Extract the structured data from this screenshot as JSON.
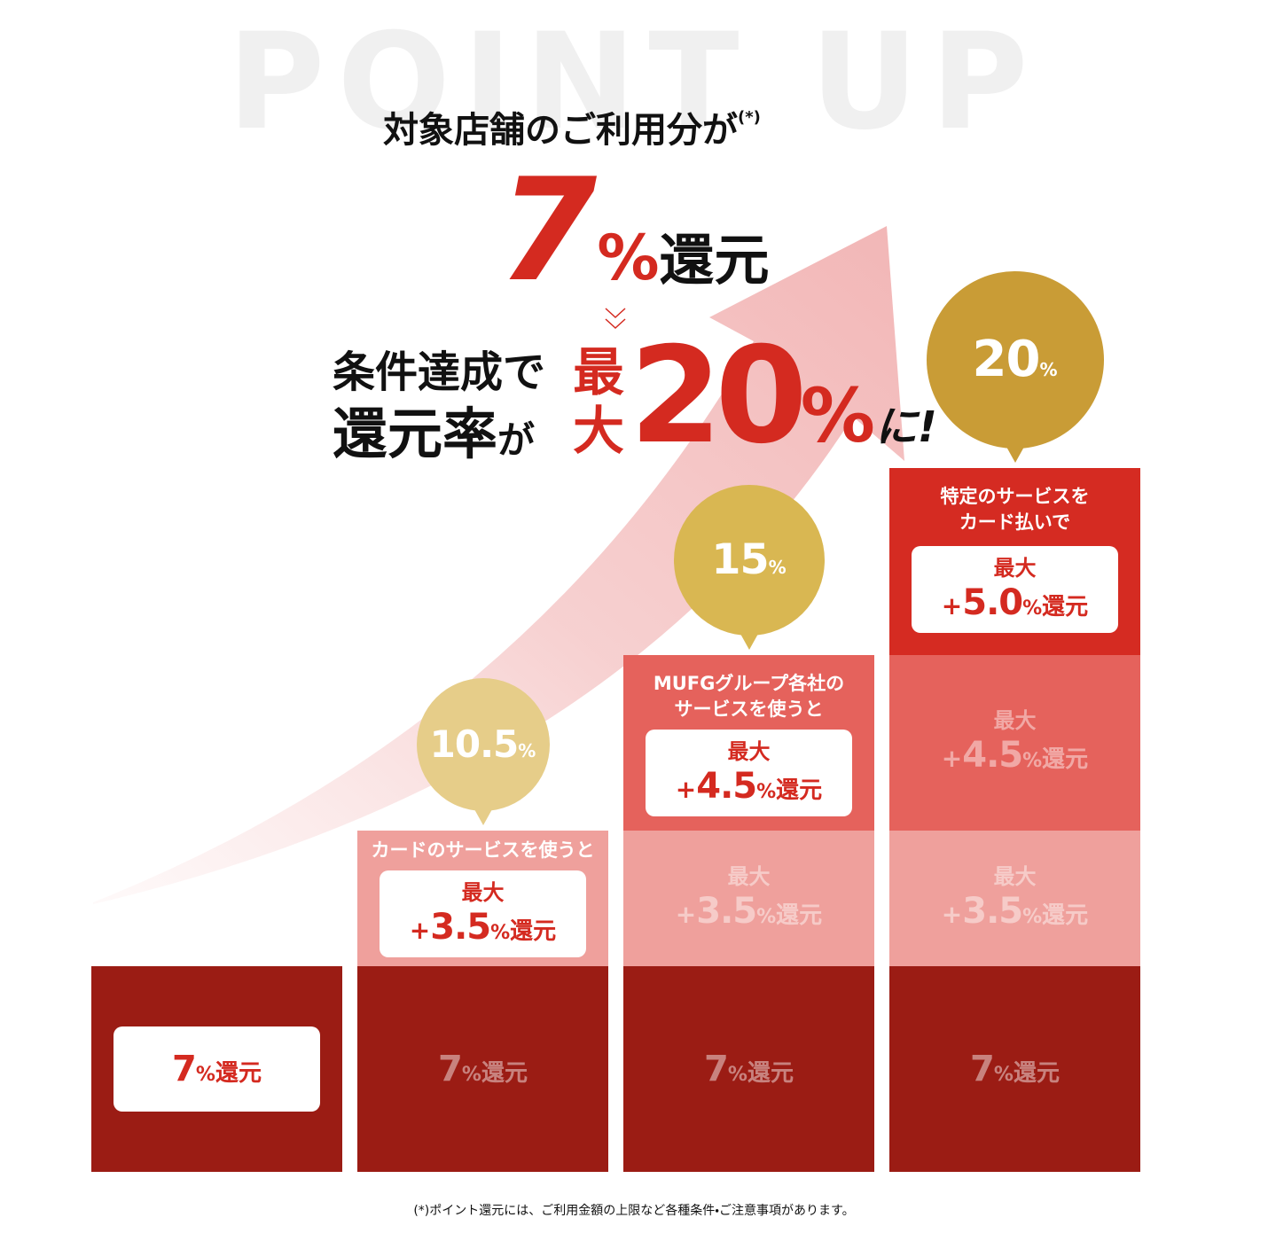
{
  "background_title": "POINT UP",
  "headline": {
    "intro": "対象店舗のご利用分が",
    "note_mark": "(*)",
    "base_rate": "7",
    "base_unit": "%",
    "base_suffix": "還元",
    "cond_line1": "条件達成で",
    "cond_line2": "還元率",
    "cond_particle": "が",
    "max_1": "最",
    "max_2": "大",
    "max_rate": "20",
    "max_unit": "%",
    "ending": "に!"
  },
  "columns": [
    {
      "base": {
        "rate": "7",
        "unit": "%",
        "suffix": "還元"
      }
    },
    {
      "bubble": {
        "rate": "10.5",
        "unit": "%"
      },
      "tiers": [
        {
          "caption": [
            "カードのサービスを使うと"
          ],
          "label": "最大",
          "sign": "+",
          "rate": "3.5",
          "unit": "%",
          "suffix": "還元"
        }
      ],
      "base": {
        "rate": "7",
        "unit": "%",
        "suffix": "還元"
      }
    },
    {
      "bubble": {
        "rate": "15",
        "unit": "%"
      },
      "tiers": [
        {
          "label": "最大",
          "sign": "+",
          "rate": "3.5",
          "unit": "%",
          "suffix": "還元"
        },
        {
          "caption": [
            "MUFGグループ各社の",
            "サービスを使うと"
          ],
          "label": "最大",
          "sign": "+",
          "rate": "4.5",
          "unit": "%",
          "suffix": "還元"
        }
      ],
      "base": {
        "rate": "7",
        "unit": "%",
        "suffix": "還元"
      }
    },
    {
      "bubble": {
        "rate": "20",
        "unit": "%"
      },
      "tiers": [
        {
          "label": "最大",
          "sign": "+",
          "rate": "3.5",
          "unit": "%",
          "suffix": "還元"
        },
        {
          "label": "最大",
          "sign": "+",
          "rate": "4.5",
          "unit": "%",
          "suffix": "還元"
        },
        {
          "caption": [
            "特定のサービスを",
            "カード払いで"
          ],
          "label": "最大",
          "sign": "+",
          "rate": "5.0",
          "unit": "%",
          "suffix": "還元"
        }
      ],
      "base": {
        "rate": "7",
        "unit": "%",
        "suffix": "還元"
      }
    }
  ],
  "footnote": "(*)ポイント還元には、ご利用金額の上限など各種条件・ご注意事項があります。"
}
